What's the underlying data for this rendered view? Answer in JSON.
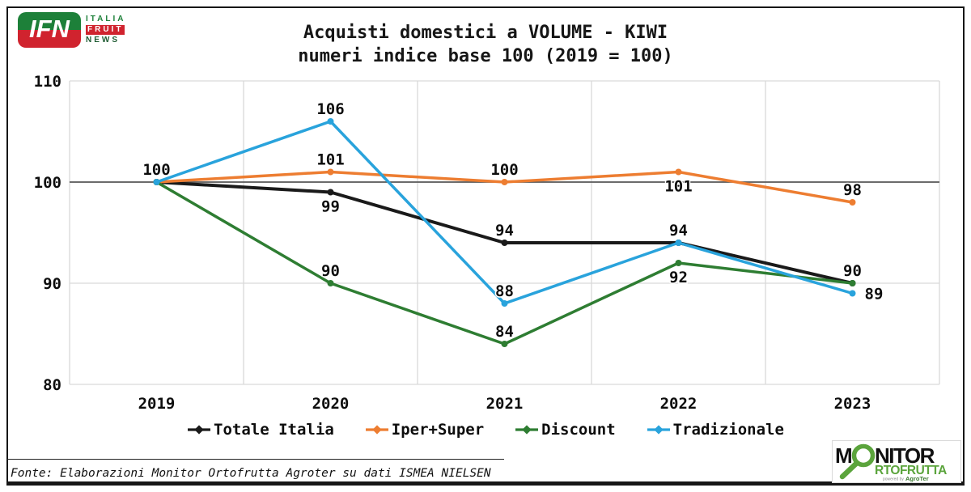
{
  "header": {
    "ifn_logo": {
      "abbr": "IFN",
      "italia": "ITALIA",
      "fruit": "FRUIT",
      "news": "NEWS"
    },
    "title_line1": "Acquisti domestici a VOLUME - KIWI",
    "title_line2": "numeri indice base 100 (2019 = 100)"
  },
  "chart_data": {
    "type": "line",
    "categories": [
      "2019",
      "2020",
      "2021",
      "2022",
      "2023"
    ],
    "ylim": [
      80,
      110
    ],
    "yticks": [
      80,
      90,
      100,
      110
    ],
    "reference_line": 100,
    "grid": true,
    "legend_position": "bottom",
    "colors": {
      "grid": "#d9d9d9",
      "reference_line": "#595959",
      "label_text": "#0d0d0d"
    },
    "series": [
      {
        "name": "Totale Italia",
        "color": "#1a1a1a",
        "stroke_width": 4,
        "values": [
          100,
          99,
          94,
          94,
          90
        ],
        "labels": [
          "above",
          "below",
          "above",
          "above",
          "above"
        ]
      },
      {
        "name": "Iper+Super",
        "color": "#ED7D31",
        "stroke_width": 3.5,
        "values": [
          100,
          101,
          100,
          101,
          98
        ],
        "labels": [
          null,
          "above",
          "above",
          "below",
          "above"
        ]
      },
      {
        "name": "Discount",
        "color": "#2E7D32",
        "stroke_width": 3.5,
        "values": [
          100,
          90,
          84,
          92,
          90
        ],
        "labels": [
          null,
          "above",
          "above",
          "below",
          null
        ]
      },
      {
        "name": "Tradizionale",
        "color": "#29A3DC",
        "stroke_width": 3.5,
        "values": [
          100,
          106,
          88,
          94,
          89
        ],
        "labels": [
          null,
          "above",
          "above",
          null,
          "right"
        ]
      }
    ]
  },
  "footer": {
    "source": "Fonte: Elaborazioni Monitor Ortofrutta Agroter su dati ISMEA NIELSEN"
  },
  "monitor_logo": {
    "word1_first": "M",
    "word1_rest": "NITOR",
    "word2": "RTOFRUTTA",
    "powered_by": "powered by",
    "brand": "AgroTer"
  }
}
